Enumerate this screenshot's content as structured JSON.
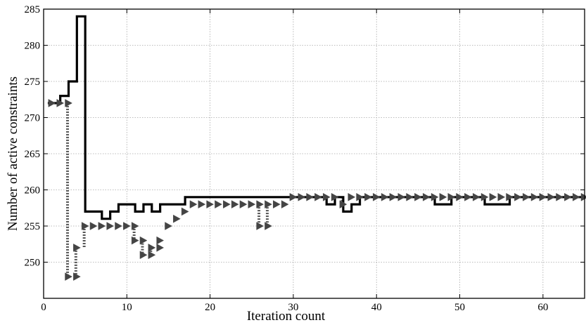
{
  "chart_data": {
    "type": "line",
    "title": "",
    "xlabel": "Iteration count",
    "ylabel": "Number of active constraints",
    "xlim": [
      0,
      65
    ],
    "ylim": [
      245,
      285
    ],
    "xticks": [
      0,
      10,
      20,
      30,
      40,
      50,
      60
    ],
    "yticks": [
      250,
      255,
      260,
      265,
      270,
      275,
      280,
      285
    ],
    "grid": true,
    "legend": "none",
    "colors": {
      "step_line": "#000000",
      "markers": "#444444",
      "dotted_drop": "#555555"
    },
    "series": [
      {
        "style": "step",
        "x": [
          0.5,
          1,
          2,
          3,
          4,
          5,
          6,
          7,
          8,
          9,
          10,
          11,
          12,
          13,
          14,
          15,
          16,
          17,
          18,
          19,
          20,
          21,
          22,
          23,
          24,
          25,
          26,
          27,
          28,
          29,
          30,
          31,
          32,
          33,
          34,
          35,
          36,
          37,
          38,
          39,
          40,
          41,
          42,
          43,
          44,
          45,
          46,
          47,
          48,
          49,
          50,
          51,
          52,
          53,
          54,
          55,
          56,
          57,
          58,
          59,
          60,
          61,
          62,
          63,
          64,
          65
        ],
        "y": [
          272,
          272,
          273,
          275,
          284,
          257,
          257,
          256,
          257,
          258,
          258,
          257,
          258,
          257,
          258,
          258,
          258,
          259,
          259,
          259,
          259,
          259,
          259,
          259,
          259,
          259,
          259,
          259,
          259,
          259,
          259,
          259,
          259,
          259,
          258,
          259,
          257,
          258,
          259,
          259,
          259,
          259,
          259,
          259,
          259,
          259,
          259,
          258,
          258,
          259,
          259,
          259,
          259,
          258,
          258,
          258,
          259,
          259,
          259,
          259,
          259,
          259,
          259,
          259,
          259,
          259
        ]
      },
      {
        "style": "markers",
        "marker": "triangle-right",
        "x": [
          1,
          2,
          3,
          3,
          4,
          4,
          5,
          6,
          7,
          8,
          9,
          10,
          11,
          11,
          12,
          12,
          13,
          13,
          14,
          14,
          15,
          16,
          17,
          18,
          19,
          20,
          21,
          22,
          23,
          24,
          25,
          26,
          26,
          27,
          27,
          28,
          29,
          30,
          31,
          32,
          33,
          34,
          35,
          36,
          37,
          38,
          39,
          40,
          41,
          42,
          43,
          44,
          45,
          46,
          47,
          48,
          49,
          50,
          51,
          52,
          53,
          54,
          55,
          56,
          57,
          58,
          59,
          60,
          61,
          62,
          63,
          64,
          65
        ],
        "y": [
          272,
          272,
          272,
          248,
          248,
          252,
          255,
          255,
          255,
          255,
          255,
          255,
          255,
          253,
          253,
          251,
          251,
          252,
          252,
          253,
          255,
          256,
          257,
          258,
          258,
          258,
          258,
          258,
          258,
          258,
          258,
          258,
          255,
          258,
          255,
          258,
          258,
          259,
          259,
          259,
          259,
          259,
          259,
          258,
          259,
          259,
          259,
          259,
          259,
          259,
          259,
          259,
          259,
          259,
          259,
          259,
          259,
          259,
          259,
          259,
          259,
          259,
          259,
          259,
          259,
          259,
          259,
          259,
          259,
          259,
          259,
          259,
          259
        ]
      }
    ],
    "dotted_drops": [
      {
        "x": 3,
        "from": 272,
        "to": 248
      },
      {
        "x": 4,
        "from": 252,
        "to": 248
      },
      {
        "x": 5,
        "from": 255,
        "to": 252
      },
      {
        "x": 11,
        "from": 255,
        "to": 253
      },
      {
        "x": 12,
        "from": 253,
        "to": 251
      },
      {
        "x": 13,
        "from": 252,
        "to": 251
      },
      {
        "x": 26,
        "from": 258,
        "to": 255
      },
      {
        "x": 27,
        "from": 258,
        "to": 255
      },
      {
        "x": 36,
        "from": 259,
        "to": 258
      }
    ]
  }
}
